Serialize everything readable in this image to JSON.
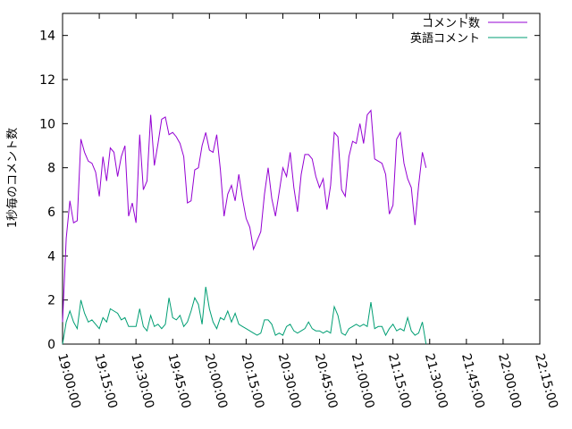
{
  "chart_data": {
    "type": "line",
    "ylabel": "1秒毎のコメント数",
    "ylim": [
      0,
      15
    ],
    "yticks": [
      0,
      2,
      4,
      6,
      8,
      10,
      12,
      14
    ],
    "xlim": [
      "19:00:00",
      "22:15:00"
    ],
    "xticks": [
      "19:00:00",
      "19:15:00",
      "19:30:00",
      "19:45:00",
      "20:00:00",
      "20:15:00",
      "20:30:00",
      "20:45:00",
      "21:00:00",
      "21:15:00",
      "21:30:00",
      "21:45:00",
      "22:00:00",
      "22:15:00"
    ],
    "x_interval_seconds": 90,
    "x_start": "19:00:00",
    "legend_position": "top-right",
    "grid": false,
    "series": [
      {
        "name": "コメント数",
        "color": "#9400d3",
        "values": [
          1.0,
          4.8,
          6.5,
          5.5,
          5.6,
          9.3,
          8.7,
          8.3,
          8.2,
          7.8,
          6.7,
          8.5,
          7.4,
          8.9,
          8.7,
          7.6,
          8.5,
          9.0,
          5.8,
          6.4,
          5.5,
          9.5,
          7.0,
          7.4,
          10.4,
          8.1,
          9.1,
          10.2,
          10.3,
          9.5,
          9.6,
          9.4,
          9.1,
          8.5,
          6.4,
          6.5,
          7.9,
          8.0,
          9.0,
          9.6,
          8.8,
          8.7,
          9.5,
          7.9,
          5.8,
          6.8,
          7.2,
          6.5,
          7.7,
          6.6,
          5.7,
          5.3,
          4.3,
          4.7,
          5.1,
          6.8,
          8.0,
          6.6,
          5.8,
          6.9,
          8.0,
          7.6,
          8.7,
          7.1,
          6.0,
          7.7,
          8.6,
          8.6,
          8.4,
          7.6,
          7.1,
          7.5,
          6.1,
          7.2,
          9.6,
          9.4,
          7.0,
          6.7,
          8.5,
          9.2,
          9.1,
          10.0,
          9.1,
          10.4,
          10.6,
          8.4,
          8.3,
          8.2,
          7.7,
          5.9,
          6.3,
          9.3,
          9.6,
          8.2,
          7.5,
          7.1,
          5.4,
          7.2,
          8.7,
          8.0
        ]
      },
      {
        "name": "英語コメント",
        "color": "#009e73",
        "values": [
          0.0,
          1.0,
          1.5,
          1.0,
          0.7,
          2.0,
          1.4,
          1.0,
          1.1,
          0.9,
          0.7,
          1.2,
          1.0,
          1.6,
          1.5,
          1.4,
          1.1,
          1.2,
          0.8,
          0.8,
          0.8,
          1.6,
          0.8,
          0.6,
          1.3,
          0.8,
          0.9,
          0.7,
          0.9,
          2.1,
          1.2,
          1.1,
          1.3,
          0.8,
          1.0,
          1.5,
          2.1,
          1.8,
          0.9,
          2.6,
          1.6,
          1.0,
          0.7,
          1.2,
          1.1,
          1.5,
          1.0,
          1.4,
          0.9,
          0.8,
          0.7,
          0.6,
          0.5,
          0.4,
          0.5,
          1.1,
          1.1,
          0.9,
          0.4,
          0.5,
          0.4,
          0.8,
          0.9,
          0.6,
          0.5,
          0.6,
          0.7,
          1.0,
          0.7,
          0.6,
          0.6,
          0.5,
          0.6,
          0.5,
          1.7,
          1.3,
          0.5,
          0.4,
          0.7,
          0.8,
          0.9,
          0.8,
          0.9,
          0.8,
          1.9,
          0.7,
          0.8,
          0.8,
          0.4,
          0.7,
          0.9,
          0.6,
          0.7,
          0.6,
          1.2,
          0.6,
          0.4,
          0.5,
          1.0,
          0.0
        ]
      }
    ]
  }
}
